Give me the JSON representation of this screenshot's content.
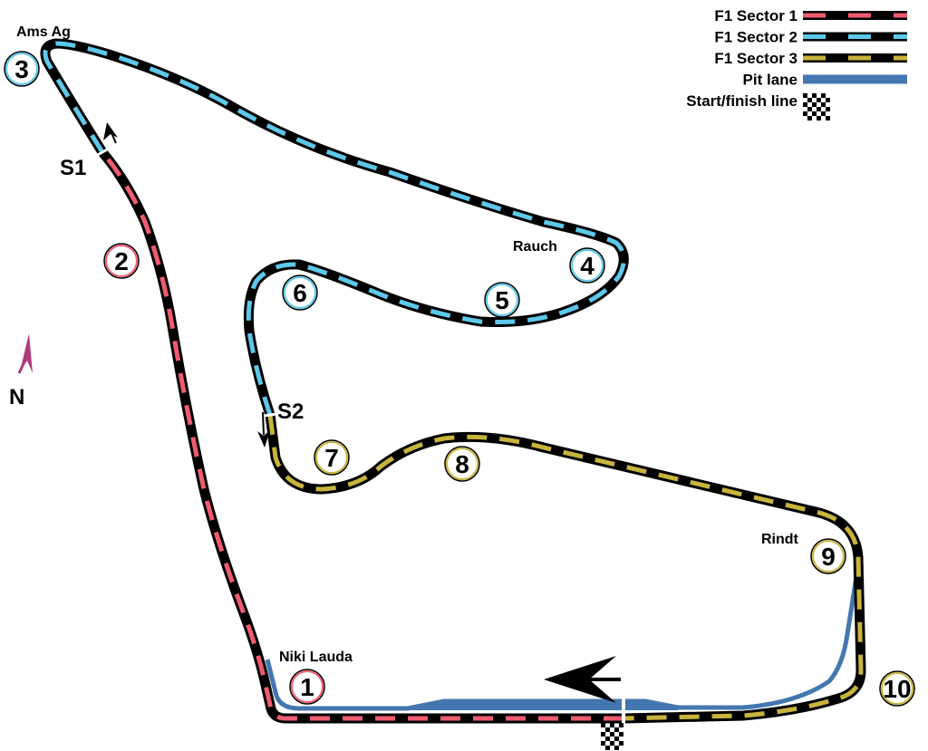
{
  "legend": [
    {
      "label": "F1 Sector 1",
      "color": "#ef5b6f"
    },
    {
      "label": "F1 Sector 2",
      "color": "#5cc8ea"
    },
    {
      "label": "F1 Sector 3",
      "color": "#c8b43c"
    },
    {
      "label": "Pit lane",
      "color": "#4477b0"
    },
    {
      "label": "Start/finish line"
    }
  ],
  "corners": [
    {
      "number": "1",
      "name": "Niki Lauda",
      "sector": 1
    },
    {
      "number": "2",
      "sector": 1
    },
    {
      "number": "3",
      "name": "Ams Ag",
      "sector": 2
    },
    {
      "number": "4",
      "name": "Rauch",
      "sector": 2
    },
    {
      "number": "5",
      "sector": 2
    },
    {
      "number": "6",
      "sector": 2
    },
    {
      "number": "7",
      "sector": 3
    },
    {
      "number": "8",
      "sector": 3
    },
    {
      "number": "9",
      "name": "Rindt",
      "sector": 3
    },
    {
      "number": "10",
      "sector": 3
    }
  ],
  "sector_markers": {
    "s1": "S1",
    "s2": "S2"
  },
  "north": {
    "label": "N",
    "color": "#b03a7c"
  },
  "colors": {
    "track": "#000000",
    "pit": "#4477b0"
  }
}
